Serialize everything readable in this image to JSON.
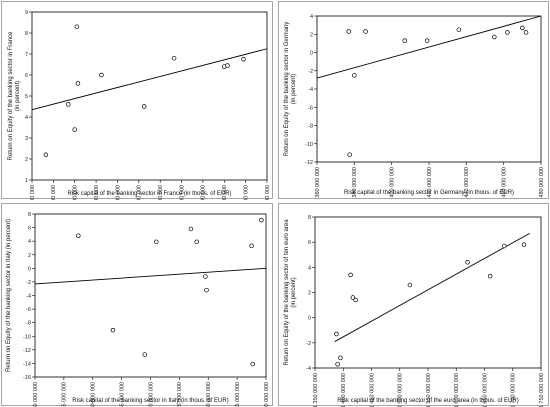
{
  "chart_data": [
    {
      "type": "scatter",
      "xlabel": "Risk capital of the banking sector in France (in thous. of EUR)",
      "ylabel": "Return on Equity of the banking sector in France\n(in percent)",
      "xlim": [
        240000000,
        460000000
      ],
      "ylim": [
        1,
        9
      ],
      "xticks": [
        240000000,
        260000000,
        280000000,
        300000000,
        320000000,
        340000000,
        360000000,
        380000000,
        400000000,
        420000000,
        440000000,
        460000000
      ],
      "xtick_labels": [
        "240 000 000",
        "260 000 000",
        "280 000 000",
        "300 000 000",
        "320 000 000",
        "340 000 000",
        "360 000 000",
        "380 000 000",
        "400 000 000",
        "420 000 000",
        "440 000 000",
        "460 000 000"
      ],
      "yticks": [
        1,
        2,
        3,
        4,
        5,
        6,
        7,
        8,
        9
      ],
      "ytick_labels": [
        "1",
        "2",
        "3",
        "4",
        "5",
        "6",
        "7",
        "8",
        "9"
      ],
      "grid": false,
      "points": [
        {
          "x": 253000000,
          "y": 2.2
        },
        {
          "x": 274000000,
          "y": 4.6
        },
        {
          "x": 280000000,
          "y": 3.4
        },
        {
          "x": 282000000,
          "y": 8.3
        },
        {
          "x": 283000000,
          "y": 5.6
        },
        {
          "x": 305000000,
          "y": 6.0
        },
        {
          "x": 345000000,
          "y": 4.5
        },
        {
          "x": 373000000,
          "y": 6.8
        },
        {
          "x": 420000000,
          "y": 6.4
        },
        {
          "x": 423000000,
          "y": 6.45
        },
        {
          "x": 438000000,
          "y": 6.75
        }
      ],
      "trend_line": {
        "x": [
          240000000,
          460000000
        ],
        "y": [
          4.35,
          7.25
        ]
      }
    },
    {
      "type": "scatter",
      "xlabel": "Risk capital of the banking sector in Germany (in thous. of EUR)",
      "ylabel": "Return on Equity of the banking sector in Germany\n(in percent)",
      "xlim": [
        360000000,
        480000000
      ],
      "ylim": [
        -12,
        4
      ],
      "xticks": [
        360000000,
        380000000,
        400000000,
        420000000,
        440000000,
        460000000,
        480000000
      ],
      "xtick_labels": [
        "360 000 000",
        "380 000 000",
        "400 000 000",
        "420 000 000",
        "440 000 000",
        "460 000 000",
        "480 000 000"
      ],
      "yticks": [
        -12,
        -10,
        -8,
        -6,
        -4,
        -2,
        0,
        2,
        4
      ],
      "ytick_labels": [
        "-12",
        "-10",
        "-8",
        "-6",
        "-4",
        "-2",
        "0",
        "2",
        "4"
      ],
      "grid": false,
      "points": [
        {
          "x": 377000000,
          "y": 2.3
        },
        {
          "x": 377500000,
          "y": -11.2
        },
        {
          "x": 380000000,
          "y": -2.5
        },
        {
          "x": 386000000,
          "y": 2.3
        },
        {
          "x": 407000000,
          "y": 1.3
        },
        {
          "x": 419000000,
          "y": 1.3
        },
        {
          "x": 436000000,
          "y": 2.5
        },
        {
          "x": 455000000,
          "y": 1.7
        },
        {
          "x": 462000000,
          "y": 2.2
        },
        {
          "x": 470000000,
          "y": 2.7
        },
        {
          "x": 472000000,
          "y": 2.2
        }
      ],
      "trend_line": {
        "x": [
          360000000,
          480000000
        ],
        "y": [
          -2.8,
          4.0
        ]
      }
    },
    {
      "type": "scatter",
      "xlabel": "Risk capital of the banking sector in Italy (in thous. of EUR)",
      "ylabel": "Return on Equity of the banking sector in Italy (in percent)",
      "xlim": [
        150000000,
        190000000
      ],
      "ylim": [
        -16,
        8
      ],
      "xticks": [
        150000000,
        155000000,
        160000000,
        165000000,
        170000000,
        175000000,
        180000000,
        185000000,
        190000000
      ],
      "xtick_labels": [
        "150 000 000",
        "155 000 000",
        "160 000 000",
        "165 000 000",
        "170 000 000",
        "175 000 000",
        "180 000 000",
        "185 000 000",
        "190 000 000"
      ],
      "yticks": [
        -16,
        -14,
        -12,
        -10,
        -8,
        -6,
        -4,
        -2,
        0,
        2,
        4,
        6,
        8
      ],
      "ytick_labels": [
        "-16",
        "-14",
        "-12",
        "-10",
        "-8",
        "-6",
        "-4",
        "-2",
        "0",
        "2",
        "4",
        "6",
        "8"
      ],
      "grid": false,
      "points": [
        {
          "x": 157500000,
          "y": 4.8
        },
        {
          "x": 163500000,
          "y": -9.1
        },
        {
          "x": 169000000,
          "y": -12.7
        },
        {
          "x": 171000000,
          "y": 3.9
        },
        {
          "x": 177000000,
          "y": 5.8
        },
        {
          "x": 178000000,
          "y": 3.9
        },
        {
          "x": 179500000,
          "y": -1.2
        },
        {
          "x": 179700000,
          "y": -3.2
        },
        {
          "x": 187500000,
          "y": 3.3
        },
        {
          "x": 187700000,
          "y": -14.1
        },
        {
          "x": 189200000,
          "y": 7.1
        }
      ],
      "trend_line": {
        "x": [
          150000000,
          190000000
        ],
        "y": [
          -2.3,
          0.0
        ]
      }
    },
    {
      "type": "scatter",
      "xlabel": "Risk capital of the banking sector of the euro area (in thous. of EUR)",
      "ylabel": "Return on Equity of the banking sector of ten euro area\n(in percent)",
      "xlim": [
        1350000000,
        1750000000
      ],
      "ylim": [
        -4,
        8
      ],
      "xticks": [
        1350000000,
        1400000000,
        1450000000,
        1500000000,
        1550000000,
        1600000000,
        1650000000,
        1700000000,
        1750000000
      ],
      "xtick_labels": [
        "1 350 000 000",
        "1 400 000 000",
        "1 450 000 000",
        "1 500 000 000",
        "1 550 000 000",
        "1 600 000 000",
        "1 650 000 000",
        "1 700 000 000",
        "1 750 000 000"
      ],
      "yticks": [
        -4,
        -2,
        0,
        2,
        4,
        6,
        8
      ],
      "ytick_labels": [
        "-4",
        "-2",
        "0",
        "2",
        "4",
        "6",
        "8"
      ],
      "grid": false,
      "points": [
        {
          "x": 1388000000,
          "y": -1.3
        },
        {
          "x": 1390000000,
          "y": -3.7
        },
        {
          "x": 1395000000,
          "y": -3.2
        },
        {
          "x": 1413000000,
          "y": 3.4
        },
        {
          "x": 1417000000,
          "y": 1.6
        },
        {
          "x": 1422000000,
          "y": 1.4
        },
        {
          "x": 1518000000,
          "y": 2.6
        },
        {
          "x": 1620000000,
          "y": 4.4
        },
        {
          "x": 1660000000,
          "y": 3.3
        },
        {
          "x": 1685000000,
          "y": 5.7
        },
        {
          "x": 1720000000,
          "y": 5.8
        }
      ],
      "trend_line": {
        "x": [
          1385000000,
          1730000000
        ],
        "y": [
          -1.9,
          6.7
        ]
      }
    }
  ]
}
